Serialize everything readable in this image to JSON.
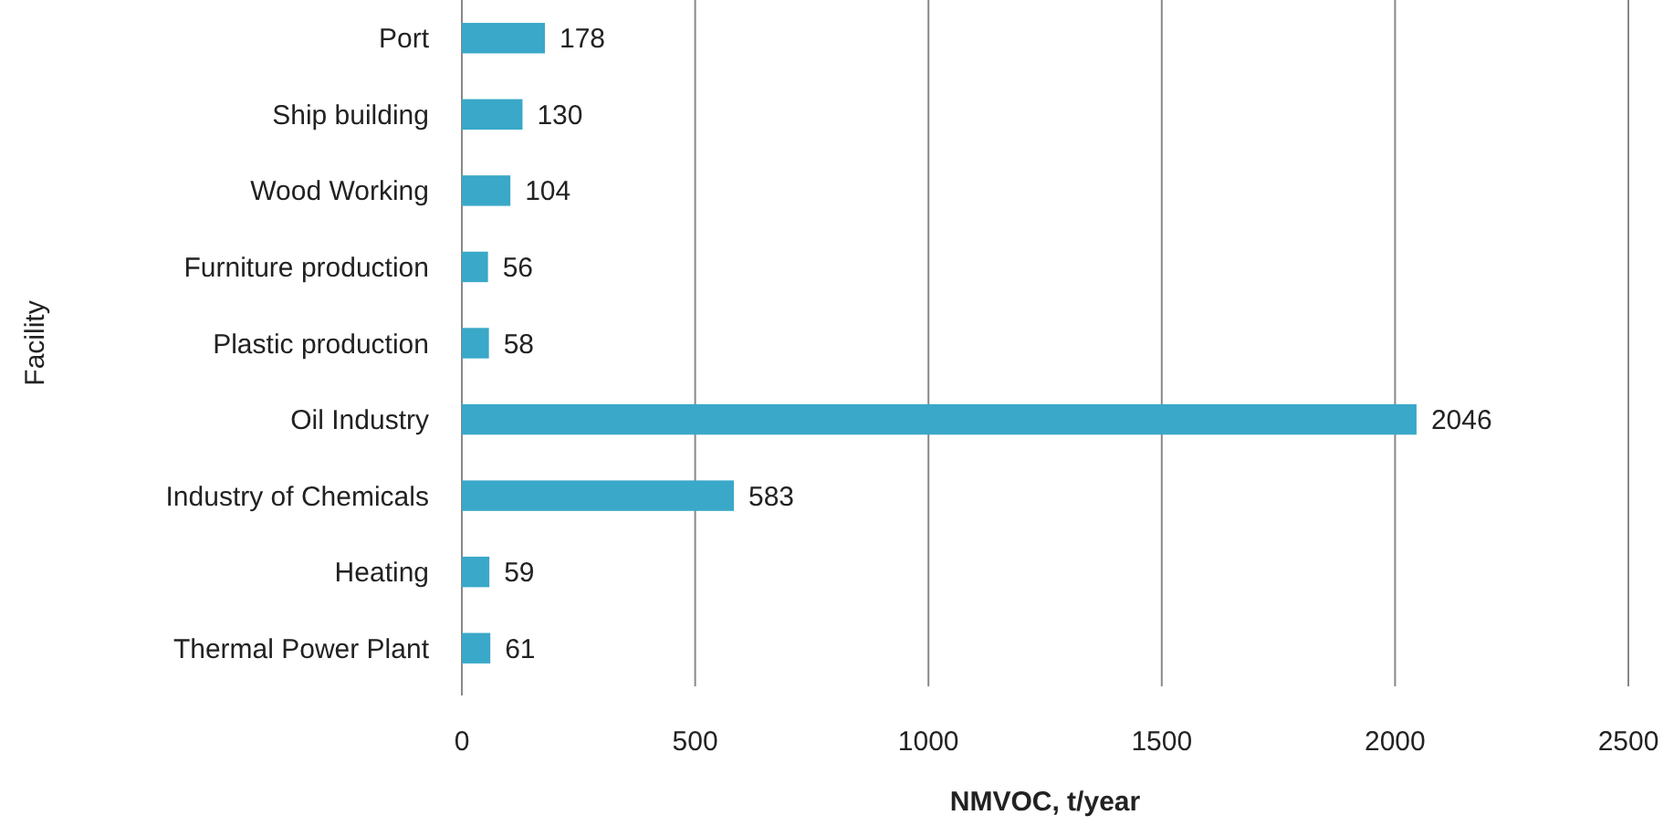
{
  "chart_data": {
    "type": "bar",
    "orientation": "horizontal",
    "xlabel": "NMVOC, t/year",
    "ylabel": "Facility",
    "categories": [
      "Port",
      "Ship building",
      "Wood Working",
      "Furniture production",
      "Plastic production",
      "Oil Industry",
      "Industry of Chemicals",
      "Heating",
      "Thermal Power Plant"
    ],
    "values": [
      178,
      130,
      104,
      56,
      58,
      2046,
      583,
      59,
      61
    ],
    "color": "#3aa8c8",
    "xlim": [
      0,
      2500
    ],
    "xticks": [
      0,
      500,
      1000,
      1500,
      2000,
      2500
    ],
    "grid": "x",
    "data_labels": true
  }
}
